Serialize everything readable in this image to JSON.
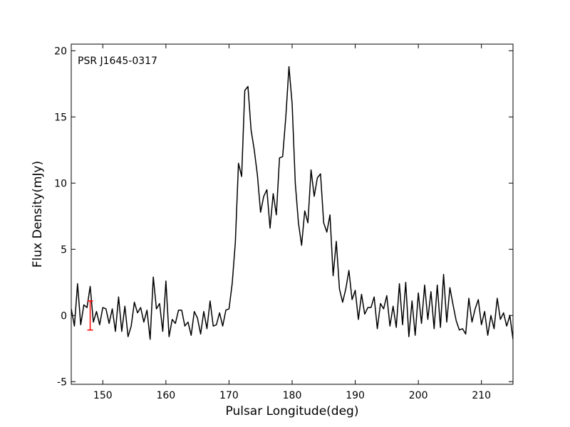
{
  "chart_data": {
    "type": "line",
    "annotation": "PSR J1645-0317",
    "xlabel": "Pulsar Longitude(deg)",
    "ylabel": "Flux Density(mJy)",
    "xlim": [
      145,
      215
    ],
    "xticks": [
      150,
      160,
      170,
      180,
      190,
      200,
      210
    ],
    "ylim": [
      -5.2,
      20.5
    ],
    "yticks": [
      -5,
      0,
      5,
      10,
      15,
      20
    ],
    "grid": false,
    "series": [
      {
        "color": "#000000",
        "x": [
          145,
          145.5,
          146,
          146.5,
          147,
          147.5,
          148,
          148.5,
          149,
          149.5,
          150,
          150.5,
          151,
          151.5,
          152,
          152.5,
          153,
          153.5,
          154,
          154.5,
          155,
          155.5,
          156,
          156.5,
          157,
          157.5,
          158,
          158.5,
          159,
          159.5,
          160,
          160.5,
          161,
          161.5,
          162,
          162.5,
          163,
          163.5,
          164,
          164.5,
          165,
          165.5,
          166,
          166.5,
          167,
          167.5,
          168,
          168.5,
          169,
          169.5,
          170,
          170.5,
          171,
          171.5,
          172,
          172.5,
          173,
          173.5,
          174,
          174.5,
          175,
          175.5,
          176,
          176.5,
          177,
          177.5,
          178,
          178.5,
          179,
          179.5,
          180,
          180.5,
          181,
          181.5,
          182,
          182.5,
          183,
          183.5,
          184,
          184.5,
          185,
          185.5,
          186,
          186.5,
          187,
          187.5,
          188,
          188.5,
          189,
          189.5,
          190,
          190.5,
          191,
          191.5,
          192,
          192.5,
          193,
          193.5,
          194,
          194.5,
          195,
          195.5,
          196,
          196.5,
          197,
          197.5,
          198,
          198.5,
          199,
          199.5,
          200,
          200.5,
          201,
          201.5,
          202,
          202.5,
          203,
          203.5,
          204,
          204.5,
          205,
          205.5,
          206,
          206.5,
          207,
          207.5,
          208,
          208.5,
          209,
          209.5,
          210,
          210.5,
          211,
          211.5,
          212,
          212.5,
          213,
          213.5,
          214,
          214.5,
          215
        ],
        "values": [
          0.5,
          -0.8,
          2.4,
          -0.7,
          0.8,
          0.6,
          2.2,
          -0.5,
          0.3,
          -0.7,
          0.6,
          0.5,
          -0.6,
          0.5,
          -1.2,
          1.4,
          -1.2,
          0.7,
          -1.6,
          -0.8,
          1.0,
          0.2,
          0.6,
          -0.5,
          0.4,
          -1.8,
          2.9,
          0.5,
          0.9,
          -1.2,
          2.6,
          -1.6,
          -0.3,
          -0.6,
          0.4,
          0.4,
          -0.8,
          -0.5,
          -1.5,
          0.3,
          -0.2,
          -1.4,
          0.3,
          -1.0,
          1.1,
          -0.8,
          -0.7,
          0.2,
          -0.8,
          0.4,
          0.5,
          2.4,
          5.5,
          11.5,
          10.5,
          17.0,
          17.3,
          14.0,
          12.5,
          10.6,
          7.8,
          9.0,
          9.5,
          6.6,
          9.2,
          7.6,
          11.9,
          12.0,
          15.0,
          18.8,
          16.0,
          10.0,
          7.0,
          5.3,
          7.9,
          7.0,
          11.0,
          9.0,
          10.4,
          10.7,
          7.0,
          6.3,
          7.6,
          3.0,
          5.6,
          2.0,
          1.0,
          2.0,
          3.4,
          1.2,
          1.9,
          -0.3,
          1.6,
          0.1,
          0.6,
          0.6,
          1.4,
          -1.0,
          0.9,
          0.5,
          1.5,
          -0.8,
          0.7,
          -0.9,
          2.4,
          -0.7,
          2.5,
          -1.6,
          1.1,
          -1.5,
          1.7,
          -0.6,
          2.3,
          -0.3,
          1.8,
          -1.0,
          2.3,
          -0.9,
          3.1,
          -0.5,
          2.1,
          0.8,
          -0.4,
          -1.1,
          -1.0,
          -1.4,
          1.3,
          -0.5,
          0.5,
          1.2,
          -0.7,
          0.3,
          -1.5,
          0.0,
          -1.0,
          1.3,
          -0.3,
          0.2,
          -0.8,
          0.0,
          -1.8
        ]
      }
    ],
    "errorbar": {
      "x": 148,
      "y": 0,
      "err": 1.1,
      "color": "#ff0000"
    }
  }
}
